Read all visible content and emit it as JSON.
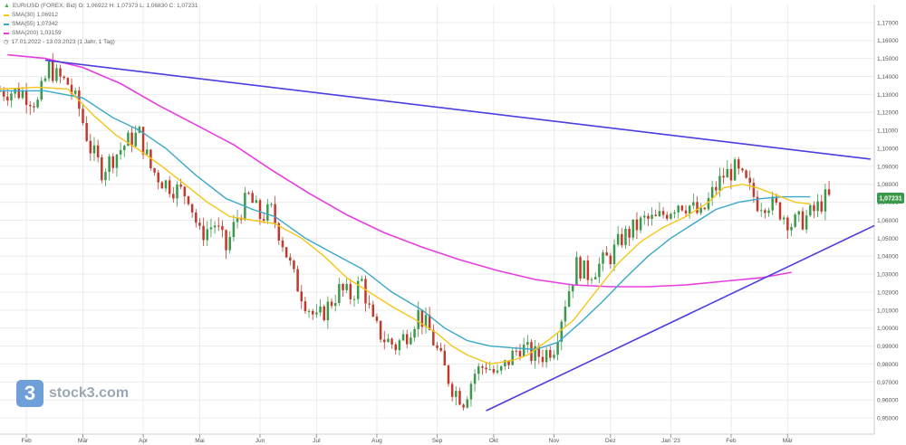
{
  "legend": {
    "symbol_line": "EUR/USD (FOREX, Bid)  O: 1,06922  H: 1,07373  L: 1,06830  C: 1,07231",
    "sma30": "SMA(30)  1,06912",
    "sma55": "SMA(55)  1,07342",
    "sma200": "SMA(200)  1,03159",
    "range": "17.01.2022 - 13.03.2023    (1 Jahr, 1 Tag)"
  },
  "watermark": {
    "logo_glyph": "3",
    "text": "stock3.com",
    "logo_color": "#6f9fd8"
  },
  "colors": {
    "up": "#3a9a4a",
    "down": "#c0392b",
    "sma30": "#f5c518",
    "sma55": "#3aa8c9",
    "sma200": "#e83de0",
    "trendline": "#4a3ee0",
    "grid": "#ececec",
    "price_badge": "#3a9a4a"
  },
  "chart_data": {
    "type": "candlestick",
    "title": "EUR/USD (FOREX, Bid)",
    "last_price": "1,07231",
    "ylim": [
      0.945,
      1.18
    ],
    "y_ticks": [
      "0,95000",
      "0,96000",
      "0,97000",
      "0,98000",
      "0,99000",
      "1,00000",
      "1,01000",
      "1,02000",
      "1,03000",
      "1,04000",
      "1,05000",
      "1,06000",
      "1,07000",
      "1,08000",
      "1,09000",
      "1,10000",
      "1,11000",
      "1,12000",
      "1,13000",
      "1,14000",
      "1,15000",
      "1,16000",
      "1,17000"
    ],
    "x_ticks": [
      "Feb",
      "Mär",
      "Apr",
      "Mai",
      "Jun",
      "Jul",
      "Aug",
      "Sep",
      "Okt",
      "Nov",
      "Dez",
      "Jan '23",
      "Feb",
      "Mär"
    ],
    "price_path": [
      [
        0,
        1.132
      ],
      [
        6,
        1.131
      ],
      [
        10,
        1.125
      ],
      [
        13,
        1.145
      ],
      [
        15,
        1.14
      ],
      [
        18,
        1.136
      ],
      [
        21,
        1.122
      ],
      [
        24,
        1.1
      ],
      [
        27,
        1.088
      ],
      [
        30,
        1.095
      ],
      [
        34,
        1.104
      ],
      [
        37,
        1.108
      ],
      [
        40,
        1.089
      ],
      [
        43,
        1.082
      ],
      [
        46,
        1.078
      ],
      [
        50,
        1.074
      ],
      [
        53,
        1.052
      ],
      [
        57,
        1.058
      ],
      [
        60,
        1.044
      ],
      [
        63,
        1.062
      ],
      [
        66,
        1.073
      ],
      [
        69,
        1.062
      ],
      [
        72,
        1.065
      ],
      [
        75,
        1.048
      ],
      [
        78,
        1.028
      ],
      [
        81,
        1.015
      ],
      [
        84,
        1.004
      ],
      [
        87,
        1.012
      ],
      [
        90,
        1.021
      ],
      [
        93,
        1.018
      ],
      [
        96,
        1.026
      ],
      [
        99,
        1.002
      ],
      [
        102,
        0.994
      ],
      [
        105,
        0.99
      ],
      [
        108,
        0.997
      ],
      [
        111,
        1.008
      ],
      [
        114,
        0.998
      ],
      [
        117,
        0.982
      ],
      [
        120,
        0.967
      ],
      [
        123,
        0.96
      ],
      [
        126,
        0.975
      ],
      [
        129,
        0.98
      ],
      [
        132,
        0.973
      ],
      [
        135,
        0.982
      ],
      [
        138,
        0.99
      ],
      [
        141,
        0.985
      ],
      [
        144,
        0.985
      ],
      [
        147,
        0.99
      ],
      [
        150,
        1.015
      ],
      [
        153,
        1.035
      ],
      [
        156,
        1.03
      ],
      [
        159,
        1.035
      ],
      [
        162,
        1.04
      ],
      [
        165,
        1.05
      ],
      [
        168,
        1.055
      ],
      [
        171,
        1.06
      ],
      [
        174,
        1.06
      ],
      [
        177,
        1.065
      ],
      [
        180,
        1.07
      ],
      [
        183,
        1.068
      ],
      [
        186,
        1.062
      ],
      [
        189,
        1.075
      ],
      [
        192,
        1.085
      ],
      [
        195,
        1.088
      ],
      [
        198,
        1.08
      ],
      [
        201,
        1.07
      ],
      [
        204,
        1.07
      ],
      [
        207,
        1.065
      ],
      [
        210,
        1.058
      ],
      [
        213,
        1.06
      ],
      [
        216,
        1.065
      ],
      [
        219,
        1.072
      ]
    ],
    "sma30": [
      [
        0,
        1.133
      ],
      [
        10,
        1.134
      ],
      [
        18,
        1.133
      ],
      [
        25,
        1.118
      ],
      [
        31,
        1.107
      ],
      [
        37,
        1.099
      ],
      [
        43,
        1.09
      ],
      [
        49,
        1.08
      ],
      [
        55,
        1.07
      ],
      [
        61,
        1.062
      ],
      [
        67,
        1.06
      ],
      [
        73,
        1.058
      ],
      [
        80,
        1.05
      ],
      [
        86,
        1.04
      ],
      [
        92,
        1.028
      ],
      [
        98,
        1.02
      ],
      [
        104,
        1.012
      ],
      [
        110,
        1.005
      ],
      [
        116,
        0.997
      ],
      [
        120,
        0.99
      ],
      [
        124,
        0.985
      ],
      [
        130,
        0.98
      ],
      [
        136,
        0.982
      ],
      [
        140,
        0.985
      ],
      [
        146,
        0.994
      ],
      [
        152,
        1.004
      ],
      [
        158,
        1.02
      ],
      [
        164,
        1.036
      ],
      [
        170,
        1.048
      ],
      [
        176,
        1.056
      ],
      [
        182,
        1.062
      ],
      [
        188,
        1.07
      ],
      [
        192,
        1.078
      ],
      [
        197,
        1.08
      ],
      [
        201,
        1.078
      ],
      [
        206,
        1.074
      ],
      [
        211,
        1.07
      ],
      [
        215,
        1.069
      ]
    ],
    "sma55": [
      [
        0,
        1.132
      ],
      [
        12,
        1.132
      ],
      [
        22,
        1.128
      ],
      [
        30,
        1.117
      ],
      [
        37,
        1.11
      ],
      [
        44,
        1.1
      ],
      [
        52,
        1.085
      ],
      [
        60,
        1.072
      ],
      [
        67,
        1.066
      ],
      [
        73,
        1.062
      ],
      [
        81,
        1.05
      ],
      [
        88,
        1.042
      ],
      [
        96,
        1.033
      ],
      [
        104,
        1.02
      ],
      [
        112,
        1.01
      ],
      [
        118,
        1.0
      ],
      [
        124,
        0.993
      ],
      [
        130,
        0.99
      ],
      [
        136,
        0.989
      ],
      [
        142,
        0.988
      ],
      [
        148,
        0.992
      ],
      [
        154,
        1.003
      ],
      [
        160,
        1.015
      ],
      [
        166,
        1.028
      ],
      [
        172,
        1.04
      ],
      [
        178,
        1.05
      ],
      [
        184,
        1.058
      ],
      [
        190,
        1.066
      ],
      [
        196,
        1.07
      ],
      [
        202,
        1.072
      ],
      [
        208,
        1.073
      ],
      [
        215,
        1.073
      ]
    ],
    "sma200": [
      [
        2,
        1.152
      ],
      [
        12,
        1.15
      ],
      [
        22,
        1.145
      ],
      [
        32,
        1.136
      ],
      [
        42,
        1.124
      ],
      [
        52,
        1.113
      ],
      [
        62,
        1.102
      ],
      [
        72,
        1.088
      ],
      [
        82,
        1.075
      ],
      [
        92,
        1.063
      ],
      [
        102,
        1.053
      ],
      [
        112,
        1.045
      ],
      [
        122,
        1.038
      ],
      [
        132,
        1.032
      ],
      [
        142,
        1.027
      ],
      [
        152,
        1.024
      ],
      [
        162,
        1.023
      ],
      [
        172,
        1.023
      ],
      [
        182,
        1.024
      ],
      [
        192,
        1.026
      ],
      [
        202,
        1.028
      ],
      [
        210,
        1.031
      ]
    ],
    "trendlines": [
      {
        "from": [
          12,
          1.149
        ],
        "to": [
          231,
          1.094
        ]
      },
      {
        "from": [
          129,
          0.954
        ],
        "to": [
          232,
          1.057
        ]
      }
    ],
    "x_domain": [
      0,
      232
    ],
    "x_tick_positions": [
      7,
      22,
      38,
      53,
      69,
      84,
      100,
      116,
      131,
      147,
      162,
      178,
      194,
      209
    ]
  }
}
